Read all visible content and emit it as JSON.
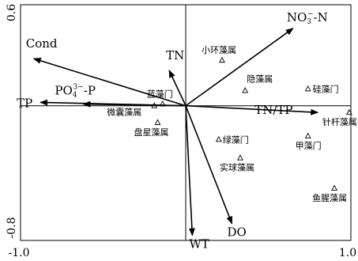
{
  "chart_data": {
    "type": "scatter",
    "xlim": [
      -1.0,
      1.0
    ],
    "ylim": [
      -0.8,
      0.6
    ],
    "x_ticks": [
      "-1.0",
      "1.0"
    ],
    "y_ticks": [
      "0.6",
      "-0.8"
    ],
    "reference_lines": [
      {
        "axis": "x",
        "value": 0.0
      },
      {
        "axis": "y",
        "value": 0.0
      }
    ],
    "vectors": [
      {
        "name": "Cond",
        "x": -0.92,
        "y": 0.28,
        "dx": -10,
        "dy": -14
      },
      {
        "name": "TN",
        "x": -0.1,
        "y": 0.21,
        "dx": -4,
        "dy": -14
      },
      {
        "name": "TP",
        "x": -0.88,
        "y": 0.02,
        "dx": -30,
        "dy": 6
      },
      {
        "name": "NO3-N",
        "main": "NO",
        "sub": "3",
        "sup": "−",
        "tail": "-N",
        "x": 0.65,
        "y": 0.46,
        "dx": -8,
        "dy": -9
      },
      {
        "name": "PO4 3--P",
        "main": "PO",
        "sub": "4",
        "sup": "3−",
        "tail": "-P",
        "x": -0.62,
        "y": 0.01,
        "dx": -36,
        "dy": -12
      },
      {
        "name": "TN/TP",
        "x": 0.8,
        "y": -0.04,
        "dx": -80,
        "dy": 2
      },
      {
        "name": "WT",
        "x": 0.04,
        "y": -0.77,
        "dx": -4,
        "dy": 16
      },
      {
        "name": "DO",
        "x": 0.28,
        "y": -0.7,
        "dx": -6,
        "dy": 16
      }
    ],
    "species": [
      {
        "name": "小环藻属",
        "x": 0.22,
        "y": 0.27,
        "dx": -26,
        "dy": -9
      },
      {
        "name": "隐藻属",
        "x": 0.36,
        "y": 0.09,
        "dx": 2,
        "dy": -11
      },
      {
        "name": "硅藻门",
        "x": 0.74,
        "y": 0.1,
        "dx": 6,
        "dy": 4
      },
      {
        "name": "蓝藻门",
        "x": -0.14,
        "y": 0.01,
        "dx": -20,
        "dy": -9
      },
      {
        "name": "微囊藻属",
        "x": -0.19,
        "y": 0.0,
        "dx": -60,
        "dy": 12
      },
      {
        "name": "盘星藻属",
        "x": -0.17,
        "y": -0.1,
        "dx": -30,
        "dy": 16
      },
      {
        "name": "针杆藻属",
        "x": 0.99,
        "y": -0.04,
        "dx": -34,
        "dy": 16
      },
      {
        "name": "绿藻门",
        "x": 0.2,
        "y": -0.2,
        "dx": 5,
        "dy": 4
      },
      {
        "name": "甲藻门",
        "x": 0.74,
        "y": -0.18,
        "dx": -16,
        "dy": 16
      },
      {
        "name": "实球藻属",
        "x": 0.33,
        "y": -0.31,
        "dx": -26,
        "dy": 16
      },
      {
        "name": "鱼腥藻属",
        "x": 0.9,
        "y": -0.49,
        "dx": -28,
        "dy": 16
      }
    ]
  }
}
